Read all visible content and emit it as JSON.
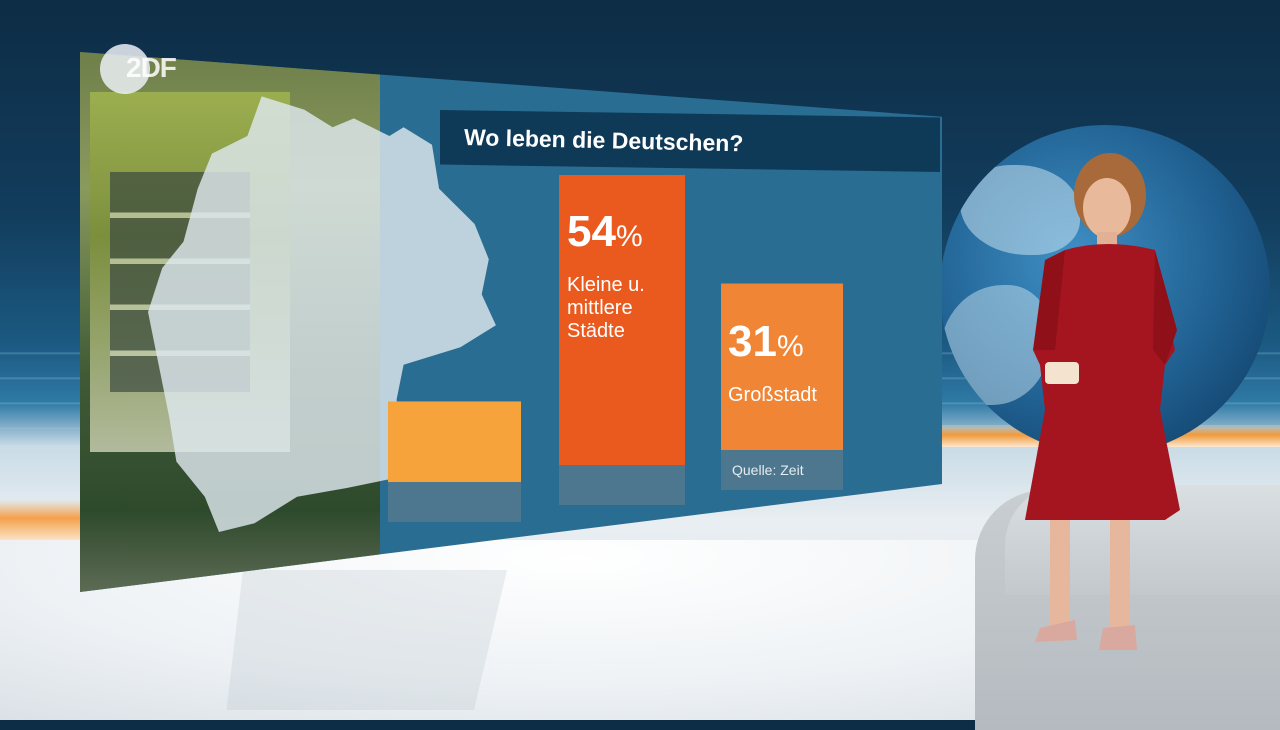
{
  "broadcaster": {
    "logo_text": "2DF"
  },
  "chart_data": {
    "type": "bar",
    "title": "Wo leben die Deutschen?",
    "unit": "%",
    "categories": [
      "",
      "Kleine u.\nmittlere\nStädte",
      "Großstadt"
    ],
    "values": [
      15,
      54,
      31
    ],
    "value_labels": [
      "",
      "54",
      "31"
    ],
    "colors": [
      "#f5a33a",
      "#ea5a1e",
      "#f08536"
    ],
    "ylim": [
      0,
      60
    ],
    "source": "Quelle: Zeit"
  }
}
